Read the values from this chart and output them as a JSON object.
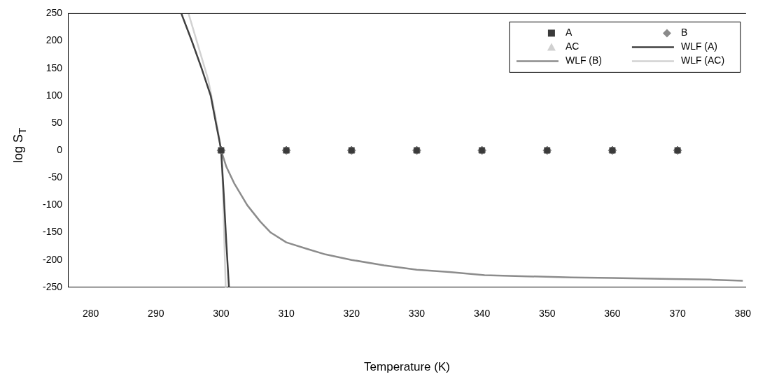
{
  "chart_data": {
    "type": "scatter",
    "xlabel": "Temperature (K)",
    "ylabel": "log S$_{T}$",
    "xlim": [
      276.5,
      380.5
    ],
    "xticks": [
      280,
      290,
      300,
      310,
      320,
      330,
      340,
      350,
      360,
      370,
      380
    ],
    "ylim": [
      -250,
      250
    ],
    "yticks": [
      -250,
      -200,
      -150,
      -100,
      -50,
      0,
      50,
      100,
      150,
      200,
      250
    ],
    "grid": false,
    "legend": "top right",
    "series": [
      {
        "name": "A",
        "type": "scatter",
        "marker": "square",
        "color": "#3a3a3a",
        "x": [
          300,
          310,
          320,
          330,
          340,
          350,
          360,
          370
        ],
        "values": [
          0,
          0,
          0,
          0,
          0,
          0,
          0,
          0
        ]
      },
      {
        "name": "B",
        "type": "scatter",
        "marker": "diamond",
        "color": "#8a8a8a",
        "x": [
          300,
          310,
          320,
          330,
          340,
          350,
          360,
          370
        ],
        "values": [
          0,
          0,
          0,
          0,
          0,
          0,
          0,
          0
        ]
      },
      {
        "name": "AC",
        "type": "scatter",
        "marker": "triangle",
        "color": "#d0d0d0",
        "x": [
          300,
          310,
          320,
          330,
          340,
          350,
          360,
          370
        ],
        "values": [
          0,
          0,
          0,
          0,
          0,
          0,
          0,
          0
        ]
      },
      {
        "name": "WLF (A)",
        "type": "line",
        "marker": "none",
        "color": "#404040",
        "x": [
          293.9,
          295.5,
          297,
          298.4,
          299.2,
          299.7,
          300,
          300.4,
          300.8,
          301.2
        ],
        "values": [
          250,
          200,
          150,
          100,
          50,
          20,
          0,
          -80,
          -170,
          -250
        ]
      },
      {
        "name": "WLF (B)",
        "type": "line",
        "marker": "none",
        "color": "#8c8c8c",
        "x": [
          300,
          300.8,
          302,
          304,
          306,
          307.6,
          310,
          313.2,
          316,
          320,
          325,
          330,
          335,
          340.4,
          347,
          353.7,
          360,
          369,
          375,
          380
        ],
        "values": [
          0,
          -30,
          -60,
          -100,
          -130,
          -150,
          -168,
          -180,
          -190,
          -200,
          -210,
          -218,
          -222,
          -228,
          -230,
          -232,
          -233,
          -235,
          -236,
          -238
        ]
      },
      {
        "name": "WLF (AC)",
        "type": "line",
        "marker": "none",
        "color": "#d2d2d2",
        "x": [
          295,
          296.5,
          298,
          299,
          299.6,
          300,
          300.3,
          300.5,
          300.7
        ],
        "values": [
          250,
          190,
          130,
          70,
          30,
          0,
          -80,
          -170,
          -250
        ]
      }
    ]
  }
}
